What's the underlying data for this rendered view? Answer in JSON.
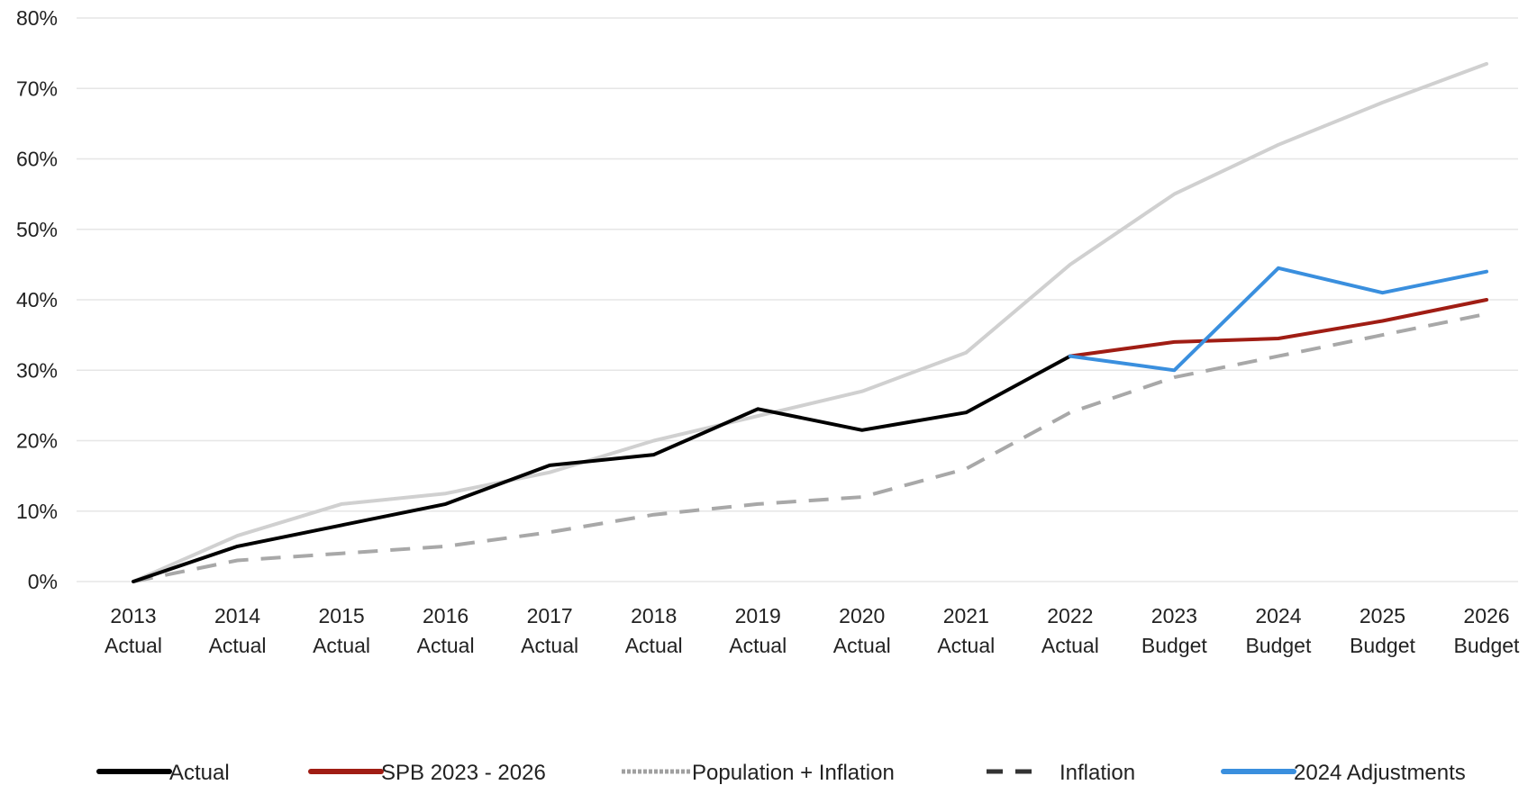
{
  "chart_data": {
    "type": "line",
    "categories": [
      [
        "2013",
        "Actual"
      ],
      [
        "2014",
        "Actual"
      ],
      [
        "2015",
        "Actual"
      ],
      [
        "2016",
        "Actual"
      ],
      [
        "2017",
        "Actual"
      ],
      [
        "2018",
        "Actual"
      ],
      [
        "2019",
        "Actual"
      ],
      [
        "2020",
        "Actual"
      ],
      [
        "2021",
        "Actual"
      ],
      [
        "2022",
        "Actual"
      ],
      [
        "2023",
        "Budget"
      ],
      [
        "2024",
        "Budget"
      ],
      [
        "2025",
        "Budget"
      ],
      [
        "2026",
        "Budget"
      ]
    ],
    "ylim": [
      0,
      80
    ],
    "yticks": [
      "0%",
      "10%",
      "20%",
      "30%",
      "40%",
      "50%",
      "60%",
      "70%",
      "80%"
    ],
    "grid": true,
    "legend_position": "bottom",
    "series": [
      {
        "key": "population-inflation",
        "name": "Population + Inflation",
        "color": "#d0d0d0",
        "dash": "solid",
        "values": [
          0,
          6.5,
          11,
          12.5,
          15.5,
          20,
          23.5,
          27,
          32.5,
          45,
          55,
          62,
          68,
          73.5
        ]
      },
      {
        "key": "inflation",
        "name": "Inflation",
        "color": "#a8a8a8",
        "dash": "dashed",
        "values": [
          0,
          3,
          4,
          5,
          7,
          9.5,
          11,
          12,
          16,
          24,
          29,
          32,
          35,
          38
        ]
      },
      {
        "key": "actual",
        "name": "Actual",
        "color": "#000000",
        "dash": "solid",
        "values": [
          0,
          5,
          8,
          11,
          16.5,
          18,
          24.5,
          21.5,
          24,
          32,
          null,
          null,
          null,
          null
        ]
      },
      {
        "key": "spb",
        "name": "SPB 2023 - 2026",
        "color": "#a01d14",
        "dash": "solid",
        "values": [
          null,
          null,
          null,
          null,
          null,
          null,
          null,
          null,
          null,
          32,
          34,
          34.5,
          37,
          40
        ]
      },
      {
        "key": "adjustments",
        "name": "2024 Adjustments",
        "color": "#3a8fde",
        "dash": "solid",
        "values": [
          null,
          null,
          null,
          null,
          null,
          null,
          null,
          null,
          null,
          32,
          30,
          44.5,
          41,
          44
        ]
      }
    ],
    "legend": [
      {
        "key": "actual",
        "label": "Actual",
        "color": "#000000",
        "style": "solid"
      },
      {
        "key": "spb",
        "label": "SPB 2023 - 2026",
        "color": "#a01d14",
        "style": "solid"
      },
      {
        "key": "population-inflation",
        "label": "Population + Inflation",
        "color": "#a0a0a0",
        "style": "dotted"
      },
      {
        "key": "inflation",
        "label": "Inflation",
        "color": "#333333",
        "style": "dashed"
      },
      {
        "key": "adjustments",
        "label": "2024 Adjustments",
        "color": "#3a8fde",
        "style": "solid"
      }
    ]
  }
}
